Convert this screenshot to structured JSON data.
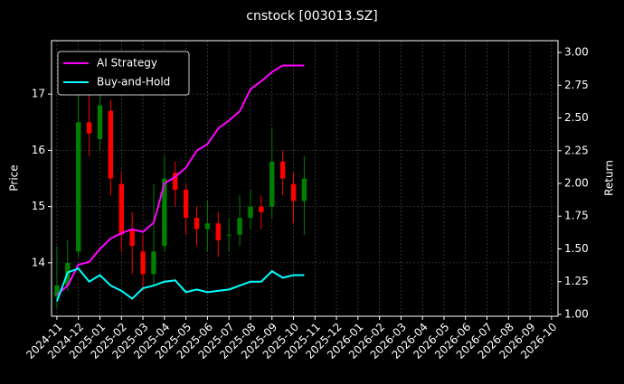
{
  "chart_data": {
    "type": "candlestick",
    "title": "cnstock [003013.SZ]",
    "ylabel": "Price",
    "y2label": "Return",
    "x": [
      0,
      0.5,
      1,
      1.5,
      2,
      2.5,
      3,
      3.5,
      4,
      4.5,
      5,
      5.5,
      6,
      6.5,
      7,
      7.5,
      8,
      8.5,
      9,
      9.5,
      10,
      10.5,
      11,
      11.5
    ],
    "candles": {
      "open": [
        13.4,
        13.6,
        14.2,
        16.5,
        16.2,
        16.7,
        15.4,
        14.6,
        14.2,
        13.8,
        14.3,
        15.6,
        15.3,
        14.8,
        14.6,
        14.7,
        14.5,
        14.5,
        14.8,
        15.0,
        15.0,
        15.8,
        15.4,
        15.1
      ],
      "high": [
        14.3,
        14.4,
        17.3,
        17.0,
        17.3,
        16.9,
        15.6,
        14.9,
        14.5,
        15.4,
        15.9,
        15.8,
        15.4,
        15.0,
        15.1,
        14.9,
        14.8,
        15.2,
        15.3,
        15.2,
        16.4,
        16.0,
        15.6,
        15.9
      ],
      "low": [
        13.2,
        13.5,
        14.1,
        15.9,
        16.0,
        15.2,
        14.2,
        13.8,
        13.5,
        13.6,
        14.2,
        15.0,
        14.5,
        14.3,
        14.2,
        14.1,
        14.2,
        14.3,
        14.6,
        14.6,
        14.8,
        15.2,
        14.7,
        14.5
      ],
      "close": [
        13.6,
        14.0,
        16.5,
        16.3,
        16.8,
        15.5,
        14.5,
        14.3,
        13.8,
        14.2,
        15.5,
        15.3,
        14.8,
        14.6,
        14.7,
        14.4,
        14.5,
        14.8,
        15.0,
        14.9,
        15.8,
        15.5,
        15.1,
        15.5
      ],
      "up_color": "#008000",
      "down_color": "#ff0000"
    },
    "series": [
      {
        "name": "AI Strategy",
        "color": "#ff00ff",
        "axis": "y2",
        "values": [
          1.15,
          1.22,
          1.38,
          1.4,
          1.5,
          1.58,
          1.62,
          1.65,
          1.63,
          1.7,
          2.0,
          2.05,
          2.12,
          2.25,
          2.3,
          2.42,
          2.48,
          2.55,
          2.72,
          2.78,
          2.85,
          2.9,
          2.9,
          2.9
        ]
      },
      {
        "name": "Buy-and-Hold",
        "color": "#00ffff",
        "axis": "y2",
        "values": [
          1.1,
          1.32,
          1.35,
          1.25,
          1.3,
          1.22,
          1.18,
          1.12,
          1.2,
          1.22,
          1.25,
          1.26,
          1.17,
          1.19,
          1.17,
          1.18,
          1.19,
          1.22,
          1.25,
          1.25,
          1.33,
          1.28,
          1.3,
          1.3
        ]
      }
    ],
    "xlim": [
      -0.25,
      23.3
    ],
    "xticks": [
      {
        "value": 0,
        "label": "2024-11"
      },
      {
        "value": 1,
        "label": "2024-12"
      },
      {
        "value": 2,
        "label": "2025-01"
      },
      {
        "value": 3,
        "label": "2025-02"
      },
      {
        "value": 4,
        "label": "2025-03"
      },
      {
        "value": 5,
        "label": "2025-04"
      },
      {
        "value": 6,
        "label": "2025-05"
      },
      {
        "value": 7,
        "label": "2025-06"
      },
      {
        "value": 8,
        "label": "2025-07"
      },
      {
        "value": 9,
        "label": "2025-08"
      },
      {
        "value": 10,
        "label": "2025-09"
      },
      {
        "value": 11,
        "label": "2025-10"
      },
      {
        "value": 12,
        "label": "2025-11"
      },
      {
        "value": 13,
        "label": "2025-12"
      },
      {
        "value": 14,
        "label": "2026-01"
      },
      {
        "value": 15,
        "label": "2026-02"
      },
      {
        "value": 16,
        "label": "2026-03"
      },
      {
        "value": 17,
        "label": "2026-04"
      },
      {
        "value": 18,
        "label": "2026-05"
      },
      {
        "value": 19,
        "label": "2026-06"
      },
      {
        "value": 20,
        "label": "2026-07"
      },
      {
        "value": 21,
        "label": "2026-08"
      },
      {
        "value": 22,
        "label": "2026-09"
      },
      {
        "value": 23,
        "label": "2026-10"
      }
    ],
    "ylim": [
      13.05,
      17.95
    ],
    "yticks": [
      14,
      15,
      16,
      17
    ],
    "y2lim": [
      0.986,
      3.09
    ],
    "y2ticks": [
      {
        "value": 1,
        "label": "1.00"
      },
      {
        "value": 1.25,
        "label": "1.25"
      },
      {
        "value": 1.5,
        "label": "1.50"
      },
      {
        "value": 1.75,
        "label": "1.75"
      },
      {
        "value": 2,
        "label": "2.00"
      },
      {
        "value": 2.25,
        "label": "2.25"
      },
      {
        "value": 2.5,
        "label": "2.50"
      },
      {
        "value": 2.75,
        "label": "2.75"
      },
      {
        "value": 3,
        "label": "3.00"
      }
    ],
    "grid": true,
    "legend": "upper left"
  }
}
